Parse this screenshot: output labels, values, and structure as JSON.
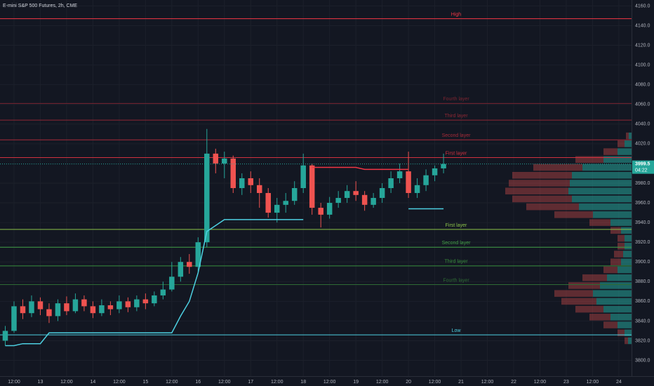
{
  "chart_data": {
    "type": "candlestick",
    "title": "E-mini S&P 500 Futures, 2h, CME",
    "x": [
      -16,
      -12,
      -8,
      -4,
      0,
      4,
      8,
      12,
      16,
      20,
      24,
      28,
      32,
      36,
      40,
      44,
      48,
      52,
      56,
      60,
      64,
      68,
      72,
      76,
      80,
      84,
      88,
      92,
      96,
      100,
      104,
      108,
      112,
      116,
      120,
      124,
      128,
      132,
      136,
      140,
      144,
      148,
      152,
      156,
      160,
      164,
      168,
      172,
      176,
      180,
      184
    ],
    "open": [
      3820,
      3830,
      3855,
      3848,
      3860,
      3852,
      3845,
      3858,
      3850,
      3862,
      3855,
      3848,
      3856,
      3852,
      3860,
      3854,
      3862,
      3858,
      3866,
      3872,
      3885,
      3900,
      3895,
      3920,
      4010,
      4000,
      4005,
      3975,
      3985,
      3978,
      3970,
      3950,
      3958,
      3962,
      3975,
      3998,
      3955,
      3948,
      3960,
      3965,
      3972,
      3968,
      3958,
      3965,
      3975,
      3985,
      3992,
      3970,
      3978,
      3988,
      3995
    ],
    "high": [
      3835,
      3860,
      3862,
      3866,
      3864,
      3858,
      3862,
      3865,
      3868,
      3866,
      3860,
      3862,
      3860,
      3866,
      3864,
      3866,
      3868,
      3870,
      3880,
      3900,
      3905,
      3908,
      3925,
      4035,
      4015,
      4012,
      4008,
      3990,
      3992,
      3985,
      3975,
      3965,
      3970,
      3982,
      4010,
      4000,
      3960,
      3966,
      3972,
      3978,
      3982,
      3972,
      3970,
      3980,
      3992,
      4000,
      4012,
      3985,
      3994,
      3998,
      4010
    ],
    "low": [
      3815,
      3828,
      3842,
      3844,
      3846,
      3838,
      3840,
      3846,
      3848,
      3850,
      3843,
      3845,
      3846,
      3848,
      3849,
      3850,
      3852,
      3855,
      3862,
      3870,
      3880,
      3888,
      3890,
      3915,
      3990,
      3985,
      3970,
      3968,
      3970,
      3955,
      3945,
      3940,
      3950,
      3958,
      3970,
      3948,
      3935,
      3944,
      3955,
      3960,
      3962,
      3952,
      3955,
      3960,
      3970,
      3980,
      3965,
      3965,
      3972,
      3982,
      3990
    ],
    "close": [
      3830,
      3855,
      3848,
      3860,
      3852,
      3845,
      3858,
      3850,
      3862,
      3855,
      3848,
      3856,
      3852,
      3860,
      3854,
      3862,
      3858,
      3866,
      3872,
      3885,
      3900,
      3895,
      3920,
      4010,
      4000,
      4005,
      3975,
      3985,
      3978,
      3970,
      3950,
      3958,
      3962,
      3975,
      3998,
      3955,
      3948,
      3960,
      3965,
      3972,
      3968,
      3958,
      3965,
      3975,
      3985,
      3992,
      3970,
      3978,
      3988,
      3995,
      3999.5
    ],
    "up_color": "#26a69a",
    "down_color": "#ef5350",
    "series": [
      {
        "color": "#4dd0e1",
        "values": [
          3815,
          3815,
          3817,
          3817,
          3817,
          3828,
          3828,
          3828,
          3828,
          3828,
          3828,
          3828,
          3828,
          3828,
          3828,
          3828,
          3828,
          3828,
          3828,
          3828,
          3845,
          3860,
          3889,
          3931,
          3937,
          3943,
          3943,
          3943,
          3943,
          3943,
          3943,
          3943,
          3943,
          3943,
          3943,
          null,
          null,
          null,
          null,
          null,
          null,
          null,
          null,
          null,
          null,
          null,
          3954,
          3954,
          3954,
          3954,
          3954
        ]
      },
      {
        "color": "#f23645",
        "values": [
          null,
          null,
          null,
          null,
          null,
          null,
          null,
          null,
          null,
          null,
          null,
          null,
          null,
          null,
          null,
          null,
          null,
          null,
          null,
          null,
          null,
          null,
          null,
          null,
          null,
          null,
          null,
          null,
          null,
          null,
          null,
          null,
          null,
          null,
          null,
          3996,
          3996,
          3996,
          3996,
          3996,
          3996,
          3994,
          3994,
          3994,
          3994,
          3994,
          3994,
          null,
          null,
          null,
          null
        ]
      }
    ],
    "levels": [
      {
        "label": "High",
        "value": 4147,
        "color": "#f23645"
      },
      {
        "label": "Fourth layer",
        "value": 4061,
        "color": "#7a2430"
      },
      {
        "label": "Third layer",
        "value": 4044,
        "color": "#8f2734"
      },
      {
        "label": "Second layer",
        "value": 4024,
        "color": "#a62a38"
      },
      {
        "label": "First layer",
        "value": 4006,
        "color": "#d0303f"
      },
      {
        "label": "First layer",
        "value": 3933,
        "color": "#8bc34a"
      },
      {
        "label": "Second layer",
        "value": 3915,
        "color": "#43a047"
      },
      {
        "label": "Third layer",
        "value": 3896,
        "color": "#388e3c"
      },
      {
        "label": "Fourth layer",
        "value": 3877,
        "color": "#2e6b34"
      },
      {
        "label": "Low",
        "value": 3826,
        "color": "#4dd0e1"
      }
    ],
    "profile": {
      "levels": [
        3820,
        3828,
        3836,
        3844,
        3852,
        3860,
        3868,
        3876,
        3884,
        3892,
        3900,
        3908,
        3916,
        3924,
        3932,
        3940,
        3948,
        3956,
        3964,
        3972,
        3980,
        3988,
        3996,
        4004,
        4012,
        4020,
        4028
      ],
      "up": [
        5,
        10,
        20,
        30,
        40,
        50,
        55,
        45,
        35,
        20,
        15,
        12,
        10,
        10,
        15,
        30,
        55,
        75,
        85,
        90,
        88,
        85,
        70,
        40,
        20,
        10,
        4
      ],
      "down": [
        5,
        10,
        20,
        30,
        40,
        50,
        55,
        45,
        35,
        20,
        15,
        13,
        10,
        10,
        15,
        30,
        55,
        75,
        85,
        90,
        87,
        85,
        70,
        40,
        20,
        10,
        4
      ],
      "up_color": "#26a69a",
      "down_color": "#ef5350"
    },
    "last_price": 3999.5,
    "countdown": "04:22",
    "xlim": [
      -18.4,
      269.8
    ],
    "ylim": [
      3784,
      4166
    ],
    "xticks": [
      {
        "value": -12,
        "label": "12:00"
      },
      {
        "value": 0,
        "label": "13"
      },
      {
        "value": 12,
        "label": "12:00"
      },
      {
        "value": 24,
        "label": "14"
      },
      {
        "value": 36,
        "label": "12:00"
      },
      {
        "value": 48,
        "label": "15"
      },
      {
        "value": 60,
        "label": "12:00"
      },
      {
        "value": 72,
        "label": "16"
      },
      {
        "value": 84,
        "label": "12:00"
      },
      {
        "value": 96,
        "label": "17"
      },
      {
        "value": 108,
        "label": "12:00"
      },
      {
        "value": 120,
        "label": "18"
      },
      {
        "value": 132,
        "label": "12:00"
      },
      {
        "value": 144,
        "label": "19"
      },
      {
        "value": 156,
        "label": "12:00"
      },
      {
        "value": 168,
        "label": "20"
      },
      {
        "value": 180,
        "label": "12:00"
      },
      {
        "value": 192,
        "label": "21"
      },
      {
        "value": 204,
        "label": "12:00"
      },
      {
        "value": 216,
        "label": "22"
      },
      {
        "value": 228,
        "label": "12:00"
      },
      {
        "value": 240,
        "label": "23"
      },
      {
        "value": 252,
        "label": "12:00"
      },
      {
        "value": 264,
        "label": "24"
      }
    ],
    "yticks": [
      {
        "value": 4160,
        "label": "4160.0"
      },
      {
        "value": 4140,
        "label": "4140.0"
      },
      {
        "value": 4120,
        "label": "4120.0"
      },
      {
        "value": 4100,
        "label": "4100.0"
      },
      {
        "value": 4080,
        "label": "4080.0"
      },
      {
        "value": 4060,
        "label": "4060.0"
      },
      {
        "value": 4040,
        "label": "4040.0"
      },
      {
        "value": 4020,
        "label": "4020.0"
      },
      {
        "value": 3980,
        "label": "3980.0"
      },
      {
        "value": 3960,
        "label": "3960.0"
      },
      {
        "value": 3940,
        "label": "3940.0"
      },
      {
        "value": 3920,
        "label": "3920.0"
      },
      {
        "value": 3900,
        "label": "3900.0"
      },
      {
        "value": 3880,
        "label": "3880.0"
      },
      {
        "value": 3860,
        "label": "3860.0"
      },
      {
        "value": 3840,
        "label": "3840.0"
      },
      {
        "value": 3820,
        "label": "3820.0"
      },
      {
        "value": 3800,
        "label": "3800.0"
      }
    ],
    "grid": true
  }
}
